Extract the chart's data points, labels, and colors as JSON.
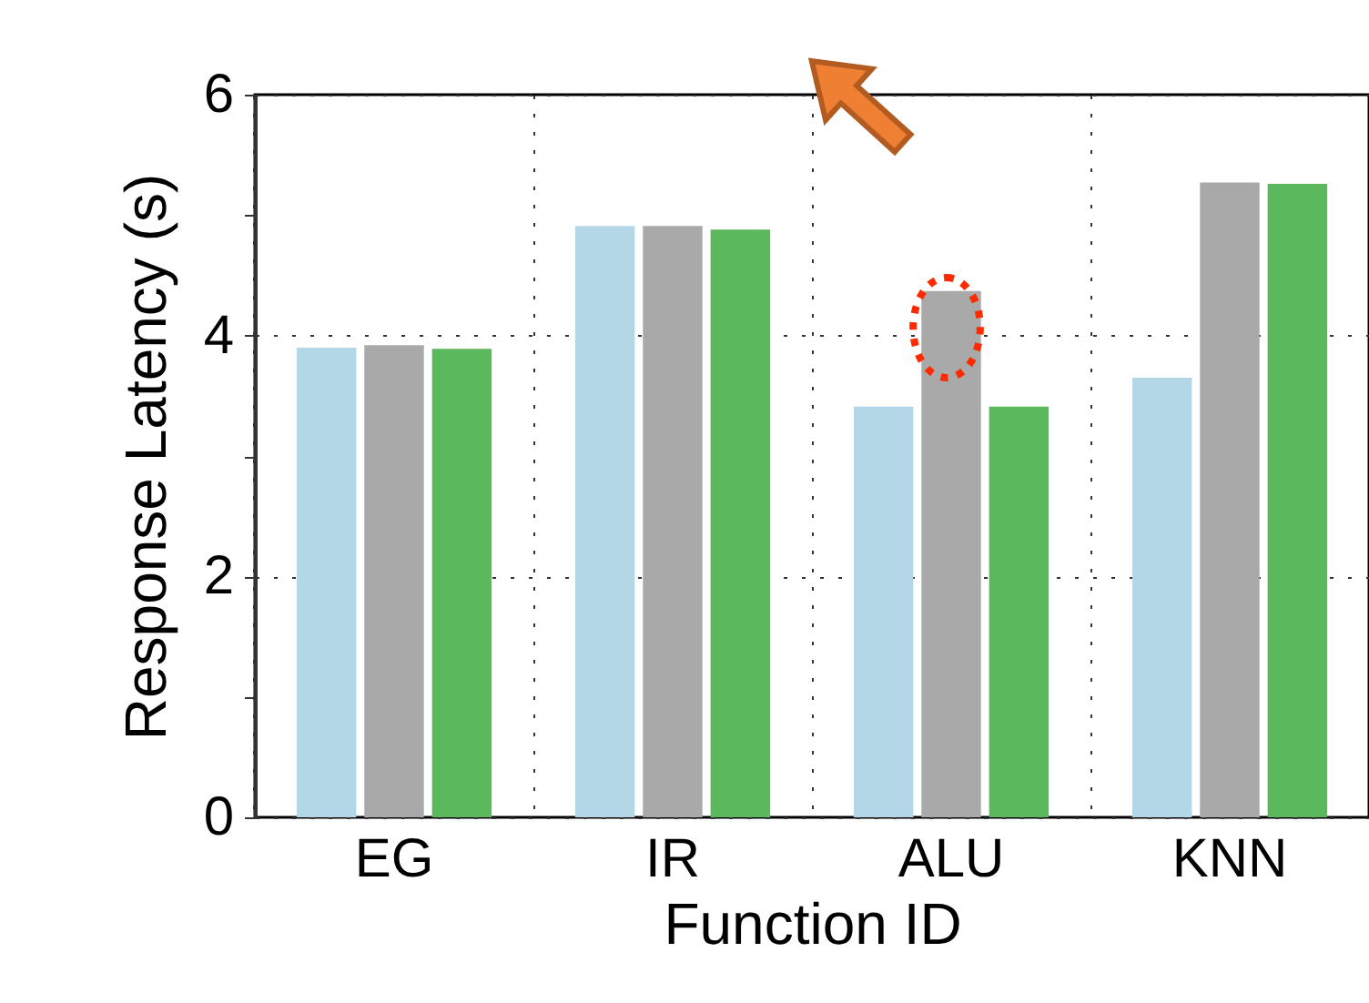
{
  "chart_data": {
    "type": "bar",
    "xlabel": "Function ID",
    "ylabel": "Response Latency (s)",
    "categories": [
      "EG",
      "IR",
      "ALU",
      "KNN"
    ],
    "series": [
      {
        "color": "#b4d7e8",
        "values": [
          3.9,
          4.91,
          3.41,
          3.65
        ]
      },
      {
        "color": "#a9a9a9",
        "values": [
          3.92,
          4.91,
          4.37,
          5.27
        ]
      },
      {
        "color": "#5cb85c",
        "values": [
          3.89,
          4.88,
          3.41,
          5.26
        ]
      }
    ],
    "ylim": [
      0,
      6
    ],
    "yticks": [
      0,
      {
        "value": 1,
        "label": null
      },
      2,
      {
        "value": 3,
        "label": null
      },
      4,
      {
        "value": 5,
        "label": null
      },
      6
    ],
    "grid": true
  }
}
